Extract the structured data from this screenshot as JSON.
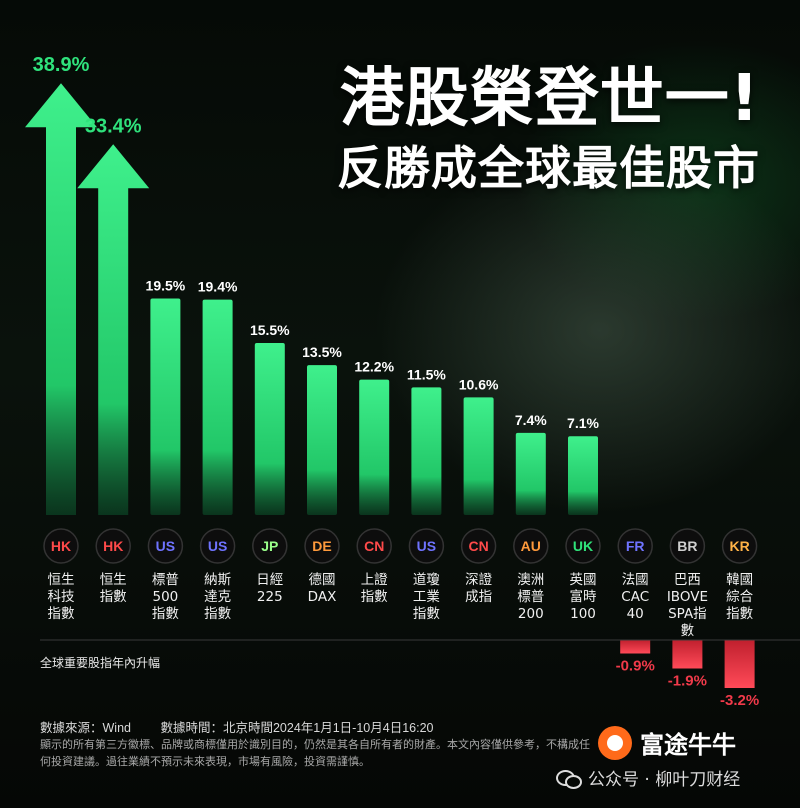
{
  "headline": {
    "line1": "港股榮登世一!",
    "line2": "反勝成全球最佳股市"
  },
  "chart_data": {
    "type": "bar",
    "caption": "全球重要股指年內升幅",
    "unit": "%",
    "ylim": [
      -3.2,
      38.9
    ],
    "categories": [
      {
        "badge": "HK",
        "name": [
          "恒生",
          "科技",
          "指數"
        ],
        "value": 38.9,
        "label": "38.9%"
      },
      {
        "badge": "HK",
        "name": [
          "恒生",
          "指數"
        ],
        "value": 33.4,
        "label": "33.4%"
      },
      {
        "badge": "US",
        "name": [
          "標普",
          "500",
          "指數"
        ],
        "value": 19.5,
        "label": "19.5%"
      },
      {
        "badge": "US",
        "name": [
          "納斯",
          "達克",
          "指數"
        ],
        "value": 19.4,
        "label": "19.4%"
      },
      {
        "badge": "JP",
        "name": [
          "日經",
          "225"
        ],
        "value": 15.5,
        "label": "15.5%"
      },
      {
        "badge": "DE",
        "name": [
          "德國",
          "DAX"
        ],
        "value": 13.5,
        "label": "13.5%"
      },
      {
        "badge": "CN",
        "name": [
          "上證",
          "指數"
        ],
        "value": 12.2,
        "label": "12.2%"
      },
      {
        "badge": "US",
        "name": [
          "道瓊",
          "工業",
          "指數"
        ],
        "value": 11.5,
        "label": "11.5%"
      },
      {
        "badge": "CN",
        "name": [
          "深證",
          "成指"
        ],
        "value": 10.6,
        "label": "10.6%"
      },
      {
        "badge": "AU",
        "name": [
          "澳洲",
          "標普",
          "200"
        ],
        "value": 7.4,
        "label": "7.4%"
      },
      {
        "badge": "UK",
        "name": [
          "英國",
          "富時",
          "100"
        ],
        "value": 7.1,
        "label": "7.1%"
      },
      {
        "badge": "FR",
        "name": [
          "法國",
          "CAC",
          "40"
        ],
        "value": -0.9,
        "label": "-0.9%"
      },
      {
        "badge": "BR",
        "name": [
          "巴西",
          "IBOVE",
          "SPA指",
          "數"
        ],
        "value": -1.9,
        "label": "-1.9%"
      },
      {
        "badge": "KR",
        "name": [
          "韓國",
          "綜合",
          "指數"
        ],
        "value": -3.2,
        "label": "-3.2%"
      }
    ]
  },
  "badge_colors": {
    "HK": "#ff4a4a",
    "CN": "#ff4a4a",
    "US": "#6f73ff",
    "FR": "#6f73ff",
    "JP": "#9aff8a",
    "UK": "#2fe37a",
    "DE": "#ff9a3c",
    "AU": "#ff9a3c",
    "BR": "#cfcfcf",
    "KR": "#ffb347"
  },
  "colors": {
    "positive": "#2fe27c",
    "negative": "#f03a4a"
  },
  "source": {
    "data_source": "數據來源：Wind",
    "data_time": "數據時間：北京時間2024年1月1日-10月4日16:20"
  },
  "disclaimer": "顯示的所有第三方徽標、品牌或商標僅用於識別目的，仍然是其各自所有者的財產。本文內容僅供參考，不構成任何投資建議。過往業績不預示未來表現，市場有風險，投資需謹慎。",
  "brand": {
    "name": "富途牛牛",
    "logo_icon": "futu-logo-icon"
  },
  "wechat": {
    "text": "公众号 · 柳叶刀财经",
    "icon": "wechat-icon"
  }
}
